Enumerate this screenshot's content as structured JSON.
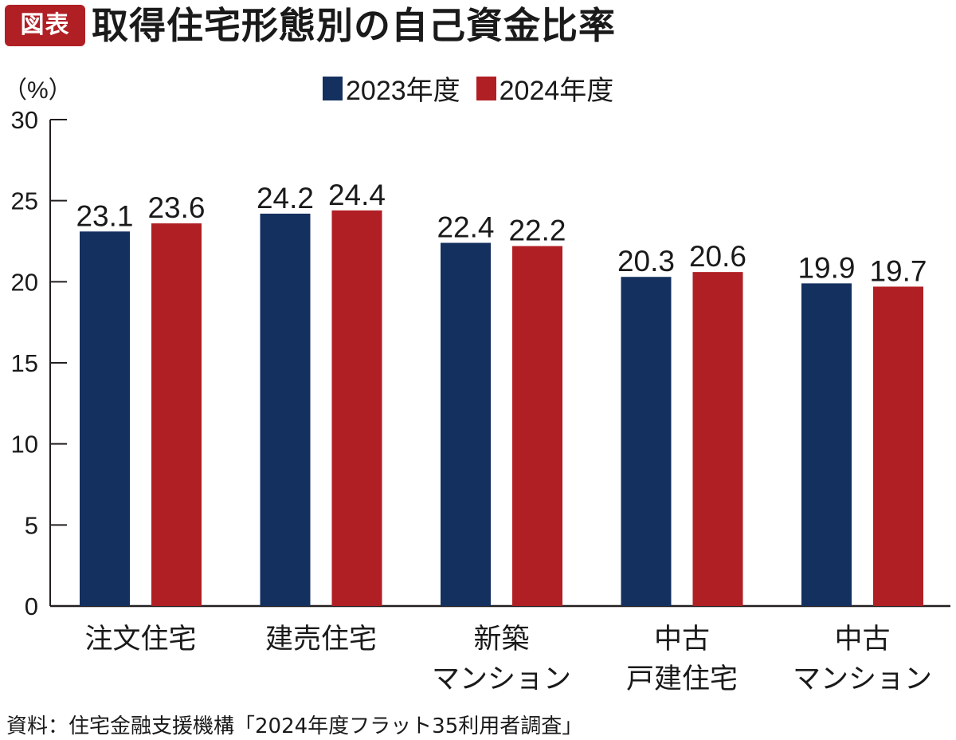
{
  "header": {
    "badge": "図表",
    "title": "取得住宅形態別の自己資金比率"
  },
  "colors": {
    "badge_bg": "#b01f24",
    "series_2023": "#14305f",
    "series_2024": "#b01f24",
    "axis": "#231f20"
  },
  "chart_data": {
    "type": "bar",
    "title": "取得住宅形態別の自己資金比率",
    "ylabel": "（%）",
    "xlabel": "",
    "ylim": [
      0,
      30
    ],
    "yticks": [
      "0",
      "5",
      "10",
      "15",
      "20",
      "25",
      "30"
    ],
    "ytick_values": [
      0,
      5,
      10,
      15,
      20,
      25,
      30
    ],
    "grid": false,
    "legend_position": "top-center",
    "categories": [
      [
        "注文住宅"
      ],
      [
        "建売住宅"
      ],
      [
        "新築",
        "マンション"
      ],
      [
        "中古",
        "戸建住宅"
      ],
      [
        "中古",
        "マンション"
      ]
    ],
    "series": [
      {
        "name": "2023年度",
        "color": "#14305f",
        "values": [
          23.1,
          24.2,
          22.4,
          20.3,
          19.9
        ],
        "labels": [
          "23.1",
          "24.2",
          "22.4",
          "20.3",
          "19.9"
        ]
      },
      {
        "name": "2024年度",
        "color": "#b01f24",
        "values": [
          23.6,
          24.4,
          22.2,
          20.6,
          19.7
        ],
        "labels": [
          "23.6",
          "24.4",
          "22.2",
          "20.6",
          "19.7"
        ]
      }
    ]
  },
  "source": "資料：住宅金融支援機構「2024年度フラット35利用者調査」"
}
